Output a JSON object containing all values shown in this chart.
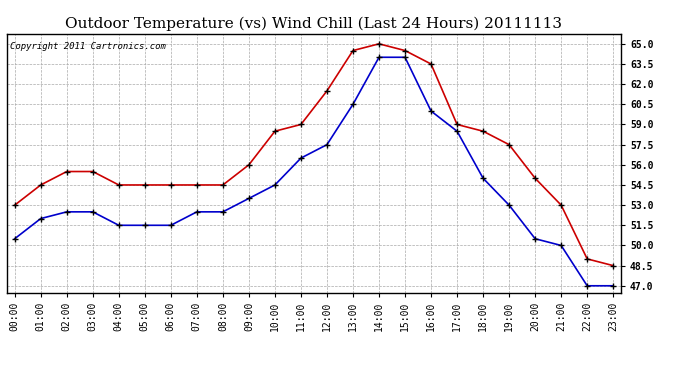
{
  "title": "Outdoor Temperature (vs) Wind Chill (Last 24 Hours) 20111113",
  "copyright_text": "Copyright 2011 Cartronics.com",
  "hours": [
    "00:00",
    "01:00",
    "02:00",
    "03:00",
    "04:00",
    "05:00",
    "06:00",
    "07:00",
    "08:00",
    "09:00",
    "10:00",
    "11:00",
    "12:00",
    "13:00",
    "14:00",
    "15:00",
    "16:00",
    "17:00",
    "18:00",
    "19:00",
    "20:00",
    "21:00",
    "22:00",
    "23:00"
  ],
  "temp": [
    53.0,
    54.5,
    55.5,
    55.5,
    54.5,
    54.5,
    54.5,
    54.5,
    54.5,
    56.0,
    58.5,
    59.0,
    61.5,
    64.5,
    65.0,
    64.5,
    63.5,
    59.0,
    58.5,
    57.5,
    55.0,
    53.0,
    49.0,
    48.5
  ],
  "wind_chill": [
    50.5,
    52.0,
    52.5,
    52.5,
    51.5,
    51.5,
    51.5,
    52.5,
    52.5,
    53.5,
    54.5,
    56.5,
    57.5,
    60.5,
    64.0,
    64.0,
    60.0,
    58.5,
    55.0,
    53.0,
    50.5,
    50.0,
    47.0,
    47.0
  ],
  "temp_color": "#cc0000",
  "wind_chill_color": "#0000cc",
  "ylim_min": 46.5,
  "ylim_max": 65.75,
  "yticks": [
    47.0,
    48.5,
    50.0,
    51.5,
    53.0,
    54.5,
    56.0,
    57.5,
    59.0,
    60.5,
    62.0,
    63.5,
    65.0
  ],
  "background_color": "#ffffff",
  "grid_color": "#aaaaaa",
  "title_fontsize": 11,
  "copyright_fontsize": 6.5,
  "tick_fontsize": 7,
  "marker": "+",
  "marker_color": "#000000",
  "marker_size": 5,
  "linewidth": 1.2
}
